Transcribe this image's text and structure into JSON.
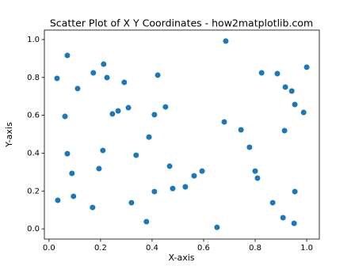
{
  "chart_data": {
    "type": "scatter",
    "title": "Scatter Plot of X Y Coordinates - how2matplotlib.com",
    "x_label": "X-axis",
    "y_label": "Y-axis",
    "color": "#1f77b4",
    "x": [
      0.031,
      0.071,
      0.062,
      0.071,
      0.089,
      0.095,
      0.034,
      0.111,
      0.172,
      0.212,
      0.225,
      0.292,
      0.246,
      0.268,
      0.308,
      0.209,
      0.194,
      0.169,
      0.338,
      0.32,
      0.422,
      0.452,
      0.409,
      0.388,
      0.468,
      0.48,
      0.409,
      0.378,
      0.529,
      0.563,
      0.594,
      0.652,
      0.686,
      0.68,
      0.745,
      0.778,
      0.8,
      0.809,
      0.825,
      0.886,
      0.917,
      0.942,
      0.954,
      0.988,
      1.0,
      0.914,
      0.868,
      0.908,
      0.954,
      0.951
    ],
    "y": [
      0.795,
      0.916,
      0.594,
      0.397,
      0.293,
      0.172,
      0.151,
      0.741,
      0.824,
      0.87,
      0.799,
      0.774,
      0.607,
      0.623,
      0.64,
      0.414,
      0.318,
      0.113,
      0.389,
      0.138,
      0.812,
      0.644,
      0.603,
      0.485,
      0.331,
      0.213,
      0.197,
      0.038,
      0.222,
      0.28,
      0.305,
      0.008,
      0.992,
      0.565,
      0.523,
      0.431,
      0.305,
      0.268,
      0.824,
      0.82,
      0.749,
      0.728,
      0.657,
      0.615,
      0.854,
      0.519,
      0.138,
      0.059,
      0.197,
      0.029
    ],
    "xlim": [
      -0.018,
      1.049
    ],
    "ylim": [
      -0.054,
      1.05
    ],
    "xticks": [
      {
        "value": 0,
        "label": "0.0"
      },
      0.2,
      0.4,
      0.6,
      0.8,
      {
        "value": 1,
        "label": "1.0"
      }
    ],
    "yticks": [
      {
        "value": 0,
        "label": "0.0"
      },
      0.2,
      0.4,
      0.6,
      0.8,
      {
        "value": 1,
        "label": "1.0"
      }
    ]
  }
}
